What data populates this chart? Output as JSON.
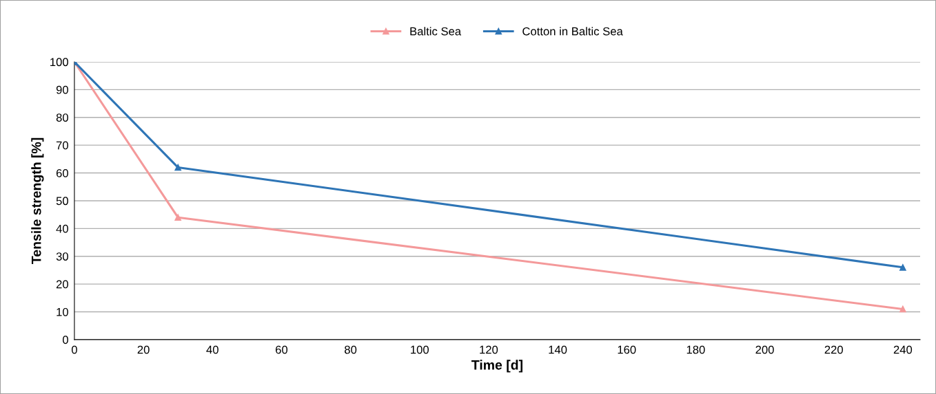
{
  "chart_data": {
    "type": "line",
    "xlabel": "Time [d]",
    "ylabel": "Tensile strength [%]",
    "x": [
      0,
      30,
      240
    ],
    "series": [
      {
        "name": "Baltic Sea",
        "color": "#f4999a",
        "values": [
          100,
          44,
          11
        ]
      },
      {
        "name": "Cotton in Baltic Sea",
        "color": "#2e75b6",
        "values": [
          100,
          62,
          26
        ]
      }
    ],
    "xlim": [
      0,
      245
    ],
    "xticks": [
      0,
      20,
      40,
      60,
      80,
      100,
      120,
      140,
      160,
      180,
      200,
      220,
      240
    ],
    "ylim": [
      0,
      100
    ],
    "yticks": [
      0,
      10,
      20,
      30,
      40,
      50,
      60,
      70,
      80,
      90,
      100
    ],
    "grid": "y",
    "legend": "top",
    "marker": "triangle",
    "line_style": "solid"
  }
}
